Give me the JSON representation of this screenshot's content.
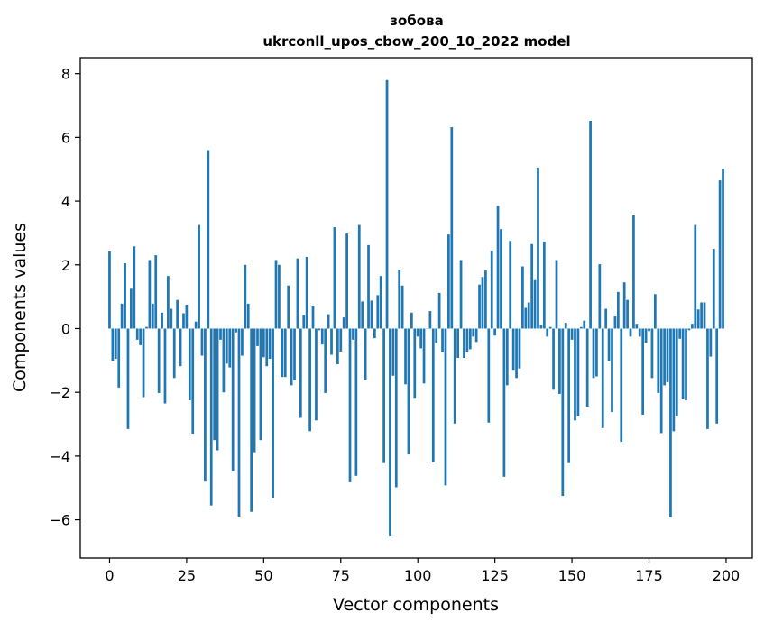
{
  "chart_data": {
    "type": "bar",
    "title": "зобова",
    "subtitle": "ukrconll_upos_cbow_200_10_2022 model",
    "xlabel": "Vector components",
    "ylabel": "Components values",
    "xlim": [
      -9.5,
      208.5
    ],
    "ylim": [
      -7.2,
      8.5
    ],
    "x_ticks": [
      0,
      25,
      50,
      75,
      100,
      125,
      150,
      175,
      200
    ],
    "y_ticks": [
      -6,
      -4,
      -2,
      0,
      2,
      4,
      6,
      8
    ],
    "grid": false,
    "legend": "none",
    "color": "#1f77b4",
    "values": [
      2.42,
      -1.02,
      -0.95,
      -1.85,
      0.78,
      2.05,
      -3.15,
      1.25,
      2.58,
      -0.35,
      -0.52,
      -2.15,
      0.05,
      2.15,
      0.78,
      2.3,
      -2.02,
      0.5,
      -2.35,
      1.65,
      0.62,
      -1.55,
      0.9,
      -1.18,
      0.48,
      0.75,
      -2.25,
      -3.32,
      0.22,
      3.25,
      -0.85,
      -4.8,
      5.6,
      -5.55,
      -3.5,
      -3.82,
      -0.35,
      -2.0,
      -1.1,
      -1.22,
      -4.48,
      -0.12,
      -5.9,
      -0.85,
      2.0,
      0.78,
      -5.75,
      -3.88,
      -0.55,
      -3.5,
      -0.9,
      -1.18,
      -0.95,
      -5.32,
      2.15,
      2.0,
      -1.52,
      -1.52,
      1.35,
      -1.78,
      -1.62,
      2.2,
      -2.8,
      0.42,
      2.25,
      -3.22,
      0.72,
      -2.88,
      -0.05,
      -0.5,
      -2.02,
      0.45,
      -0.82,
      3.18,
      -1.12,
      -0.72,
      0.35,
      2.98,
      -4.82,
      -0.35,
      -4.62,
      3.25,
      0.85,
      -1.6,
      2.62,
      0.88,
      -0.3,
      1.05,
      1.65,
      -4.22,
      7.8,
      -6.52,
      -1.48,
      -4.98,
      1.85,
      1.35,
      -1.75,
      -3.95,
      0.5,
      -2.2,
      -0.25,
      -0.62,
      -1.72,
      0.0,
      0.55,
      -4.2,
      -0.45,
      1.12,
      -0.75,
      -4.92,
      2.95,
      6.32,
      -2.98,
      -0.92,
      2.15,
      -0.92,
      -0.75,
      -0.65,
      -0.25,
      -0.42,
      1.38,
      1.62,
      1.82,
      -2.95,
      2.45,
      -0.22,
      3.85,
      3.12,
      -4.65,
      -1.78,
      2.75,
      -1.32,
      -1.55,
      -1.25,
      1.95,
      0.65,
      0.82,
      2.65,
      1.52,
      5.05,
      0.12,
      2.72,
      -0.25,
      0.05,
      -1.92,
      2.15,
      -2.05,
      -5.25,
      0.18,
      -4.22,
      -0.35,
      -2.88,
      -2.75,
      0.05,
      0.25,
      -2.45,
      6.52,
      -1.55,
      -1.5,
      2.02,
      -3.12,
      0.62,
      -1.02,
      -2.62,
      0.38,
      1.15,
      -3.55,
      1.45,
      0.9,
      -0.25,
      3.55,
      0.15,
      -0.25,
      -2.7,
      -0.45,
      -0.08,
      -1.55,
      1.08,
      -2.02,
      -3.28,
      -1.78,
      -1.68,
      -5.92,
      -3.22,
      -2.75,
      -0.32,
      -2.22,
      -2.25,
      -0.05,
      0.15,
      3.25,
      0.6,
      0.82,
      0.82,
      -3.15,
      -0.88,
      2.5,
      -2.98,
      4.65,
      5.02
    ]
  }
}
